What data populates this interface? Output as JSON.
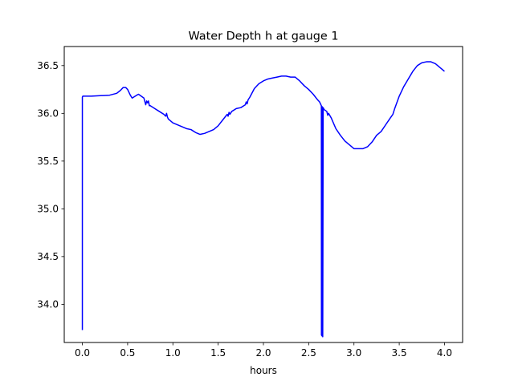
{
  "chart_data": {
    "type": "line",
    "title": "Water Depth h at gauge 1",
    "xlabel": "hours",
    "ylabel": "",
    "xlim": [
      -0.2,
      4.2
    ],
    "ylim": [
      33.6,
      36.7
    ],
    "xticks": [
      0.0,
      0.5,
      1.0,
      1.5,
      2.0,
      2.5,
      3.0,
      3.5,
      4.0
    ],
    "xtick_labels": [
      "0.0",
      "0.5",
      "1.0",
      "1.5",
      "2.0",
      "2.5",
      "3.0",
      "3.5",
      "4.0"
    ],
    "yticks": [
      34.0,
      34.5,
      35.0,
      35.5,
      36.0,
      36.5
    ],
    "ytick_labels": [
      "34.0",
      "34.5",
      "35.0",
      "35.5",
      "36.0",
      "36.5"
    ],
    "grid": false,
    "series": [
      {
        "color": "#0000ff",
        "x": [
          0.0,
          0.0,
          0.005,
          0.1,
          0.2,
          0.3,
          0.38,
          0.42,
          0.45,
          0.48,
          0.5,
          0.53,
          0.55,
          0.6,
          0.62,
          0.65,
          0.68,
          0.7,
          0.71,
          0.72,
          0.73,
          0.74,
          0.75,
          0.8,
          0.85,
          0.9,
          0.92,
          0.93,
          0.94,
          0.95,
          1.0,
          1.05,
          1.1,
          1.15,
          1.2,
          1.25,
          1.3,
          1.35,
          1.4,
          1.45,
          1.5,
          1.55,
          1.6,
          1.61,
          1.62,
          1.63,
          1.65,
          1.7,
          1.75,
          1.8,
          1.81,
          1.82,
          1.83,
          1.85,
          1.9,
          1.95,
          2.0,
          2.05,
          2.1,
          2.15,
          2.2,
          2.25,
          2.3,
          2.35,
          2.4,
          2.45,
          2.5,
          2.55,
          2.6,
          2.62,
          2.63,
          2.64,
          2.641,
          2.645,
          2.65,
          2.655,
          2.66,
          2.67,
          2.7,
          2.71,
          2.72,
          2.75,
          2.8,
          2.85,
          2.9,
          2.95,
          3.0,
          3.05,
          3.1,
          3.15,
          3.2,
          3.25,
          3.3,
          3.35,
          3.4,
          3.43,
          3.44,
          3.45,
          3.5,
          3.55,
          3.6,
          3.65,
          3.7,
          3.75,
          3.8,
          3.85,
          3.9,
          3.95,
          4.0
        ],
        "y": [
          33.73,
          36.17,
          36.18,
          36.18,
          36.185,
          36.19,
          36.21,
          36.24,
          36.27,
          36.27,
          36.25,
          36.19,
          36.16,
          36.19,
          36.2,
          36.18,
          36.16,
          36.09,
          36.13,
          36.11,
          36.13,
          36.08,
          36.08,
          36.05,
          36.02,
          35.99,
          35.97,
          36.0,
          35.96,
          35.94,
          35.9,
          35.88,
          35.86,
          35.84,
          35.83,
          35.8,
          35.78,
          35.79,
          35.81,
          35.83,
          35.87,
          35.93,
          35.99,
          35.97,
          36.01,
          35.99,
          36.02,
          36.05,
          36.06,
          36.09,
          36.12,
          36.1,
          36.14,
          36.17,
          36.26,
          36.31,
          36.34,
          36.36,
          36.37,
          36.38,
          36.39,
          36.39,
          36.38,
          36.38,
          36.34,
          36.29,
          36.25,
          36.2,
          36.14,
          36.12,
          36.1,
          36.08,
          33.68,
          33.67,
          36.07,
          33.66,
          36.06,
          36.04,
          36.02,
          35.98,
          36.0,
          35.95,
          35.84,
          35.77,
          35.71,
          35.67,
          35.63,
          35.63,
          35.63,
          35.65,
          35.7,
          35.77,
          35.81,
          35.88,
          35.95,
          35.99,
          36.02,
          36.05,
          36.18,
          36.28,
          36.36,
          36.44,
          36.5,
          36.53,
          36.54,
          36.54,
          36.52,
          36.48,
          36.44
        ]
      }
    ]
  }
}
